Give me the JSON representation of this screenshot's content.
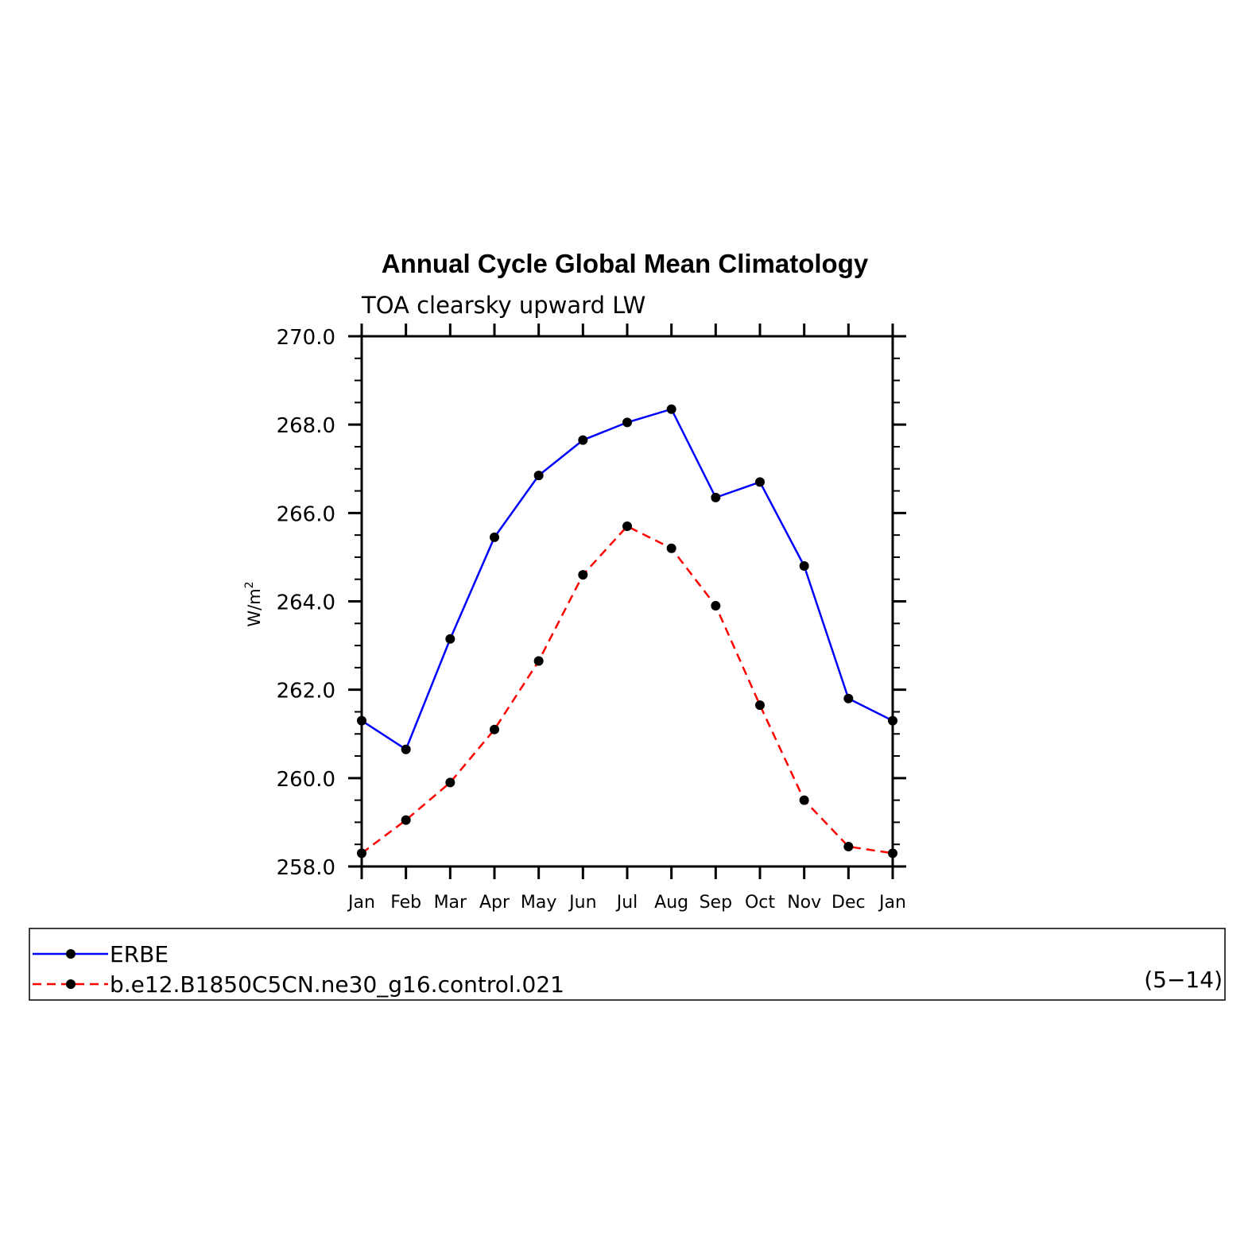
{
  "chart_data": {
    "type": "line",
    "title": "Annual Cycle Global Mean Climatology",
    "subtitle": "TOA clearsky upward LW",
    "ylabel_base": "W/m",
    "ylabel_sup": "2",
    "ylim": [
      258.0,
      270.0
    ],
    "yticks": [
      "258.0",
      "260.0",
      "262.0",
      "264.0",
      "266.0",
      "268.0",
      "270.0"
    ],
    "categories": [
      "Jan",
      "Feb",
      "Mar",
      "Apr",
      "May",
      "Jun",
      "Jul",
      "Aug",
      "Sep",
      "Oct",
      "Nov",
      "Dec",
      "Jan"
    ],
    "series": [
      {
        "name": "ERBE",
        "color": "#0000ff",
        "dash": "solid",
        "values": [
          261.3,
          260.65,
          263.15,
          265.45,
          266.85,
          267.65,
          268.05,
          268.35,
          266.35,
          266.7,
          264.8,
          261.8,
          261.3
        ]
      },
      {
        "name": "b.e12.B1850C5CN.ne30_g16.control.021",
        "color": "#ff0000",
        "dash": "dashed",
        "values": [
          258.3,
          259.05,
          259.9,
          261.1,
          262.65,
          264.6,
          265.7,
          265.2,
          263.9,
          261.65,
          259.5,
          258.45,
          258.3
        ]
      }
    ],
    "legend_placement": "bottom",
    "legend_note": "(5−14)"
  }
}
